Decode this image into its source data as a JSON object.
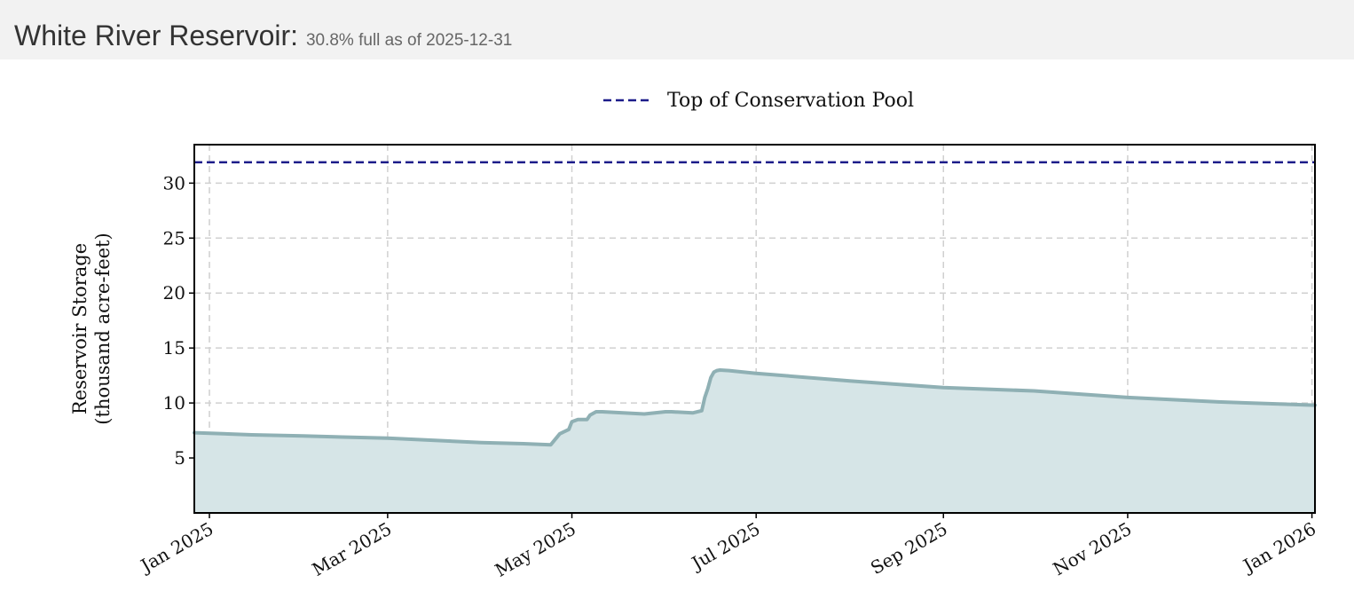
{
  "header": {
    "title": "White River Reservoir:",
    "subtitle": "30.8% full as of 2025-12-31"
  },
  "colors": {
    "conservation_line": "#1c1c8a",
    "storage_line": "#8fb0b4",
    "storage_fill": "#d6e5e7",
    "grid": "#d0d0d0",
    "frame": "#000000"
  },
  "chart_data": {
    "type": "area",
    "legend": {
      "placement": "top-center",
      "entries": [
        {
          "label": "Top of Conservation Pool",
          "style": "dashed",
          "color": "#1c1c8a"
        }
      ]
    },
    "ylabel": "Reservoir Storage\n(thousand acre-feet)",
    "ylabel_lines": [
      "Reservoir Storage",
      "(thousand acre-feet)"
    ],
    "xlabel": "",
    "ylim": [
      0,
      33.5
    ],
    "yticks": [
      5,
      10,
      15,
      20,
      25,
      30
    ],
    "xlim": [
      "2024-12-27",
      "2026-01-02"
    ],
    "xticks": [
      {
        "date": "2025-01-01",
        "label": "Jan 2025"
      },
      {
        "date": "2025-03-01",
        "label": "Mar 2025"
      },
      {
        "date": "2025-05-01",
        "label": "May 2025"
      },
      {
        "date": "2025-07-01",
        "label": "Jul 2025"
      },
      {
        "date": "2025-09-01",
        "label": "Sep 2025"
      },
      {
        "date": "2025-11-01",
        "label": "Nov 2025"
      },
      {
        "date": "2026-01-01",
        "label": "Jan 2026"
      }
    ],
    "grid": true,
    "conservation_pool": 31.9,
    "series": [
      {
        "x": [
          "2024-12-27",
          "2025-01-15",
          "2025-02-01",
          "2025-03-01",
          "2025-04-01",
          "2025-04-15",
          "2025-04-24",
          "2025-04-27",
          "2025-04-30",
          "2025-05-01",
          "2025-05-03",
          "2025-05-06",
          "2025-05-07",
          "2025-05-09",
          "2025-05-11",
          "2025-05-25",
          "2025-06-01",
          "2025-06-03",
          "2025-06-10",
          "2025-06-13",
          "2025-06-14",
          "2025-06-15",
          "2025-06-16",
          "2025-06-17",
          "2025-06-18",
          "2025-06-19",
          "2025-06-22",
          "2025-07-01",
          "2025-08-01",
          "2025-09-01",
          "2025-10-01",
          "2025-11-01",
          "2025-12-01",
          "2026-01-02"
        ],
        "values": [
          7.3,
          7.1,
          7.0,
          6.8,
          6.4,
          6.3,
          6.2,
          7.2,
          7.6,
          8.3,
          8.5,
          8.5,
          8.9,
          9.2,
          9.2,
          9.0,
          9.2,
          9.2,
          9.1,
          9.3,
          10.5,
          11.3,
          12.3,
          12.8,
          12.95,
          13.0,
          12.95,
          12.7,
          12.0,
          11.4,
          11.1,
          10.5,
          10.1,
          9.8
        ]
      }
    ]
  }
}
